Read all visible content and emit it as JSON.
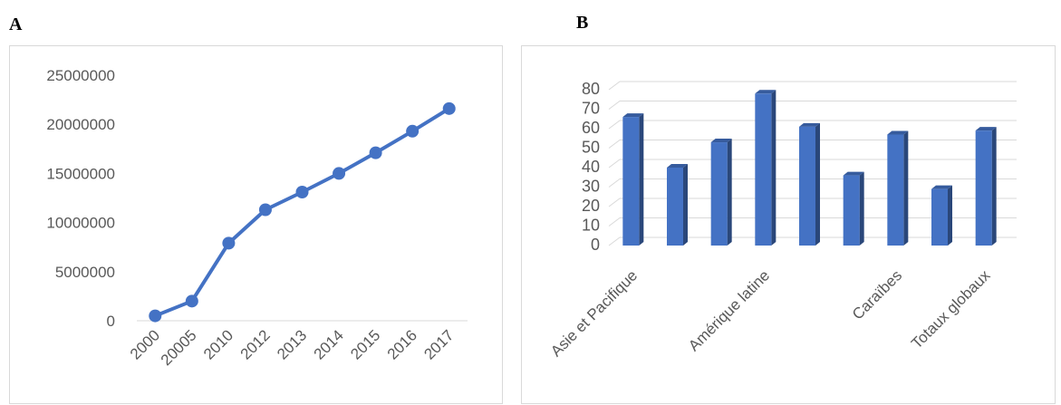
{
  "panels": {
    "a_label": "A",
    "b_label": "B"
  },
  "chart_data": [
    {
      "type": "line",
      "x": [
        "2000",
        "20005",
        "2010",
        "2012",
        "2013",
        "2014",
        "2015",
        "2016",
        "2017"
      ],
      "series": [
        {
          "values": [
            500000,
            2000000,
            7900000,
            11300000,
            13100000,
            15000000,
            17100000,
            19300000,
            21600000
          ]
        }
      ],
      "title": "",
      "xlabel": "",
      "ylabel": "",
      "ylim": [
        0,
        25000000
      ],
      "yticks": [
        "0",
        "5000000",
        "10000000",
        "15000000",
        "20000000",
        "25000000"
      ],
      "grid": false,
      "color": "#4472C4"
    },
    {
      "type": "bar",
      "categories": [
        "Asie et Pacifique",
        "",
        "",
        "Amérique latine",
        "",
        "",
        "Caraïbes",
        "",
        "Totaux globaux"
      ],
      "values": [
        66,
        40,
        53,
        78,
        61,
        36,
        57,
        29,
        59
      ],
      "title": "",
      "xlabel": "",
      "ylabel": "",
      "ylim": [
        0,
        80
      ],
      "yticks": [
        "0",
        "10",
        "20",
        "30",
        "40",
        "50",
        "60",
        "70",
        "80"
      ],
      "grid": true,
      "style": "3d",
      "color": "#4472C4"
    }
  ]
}
